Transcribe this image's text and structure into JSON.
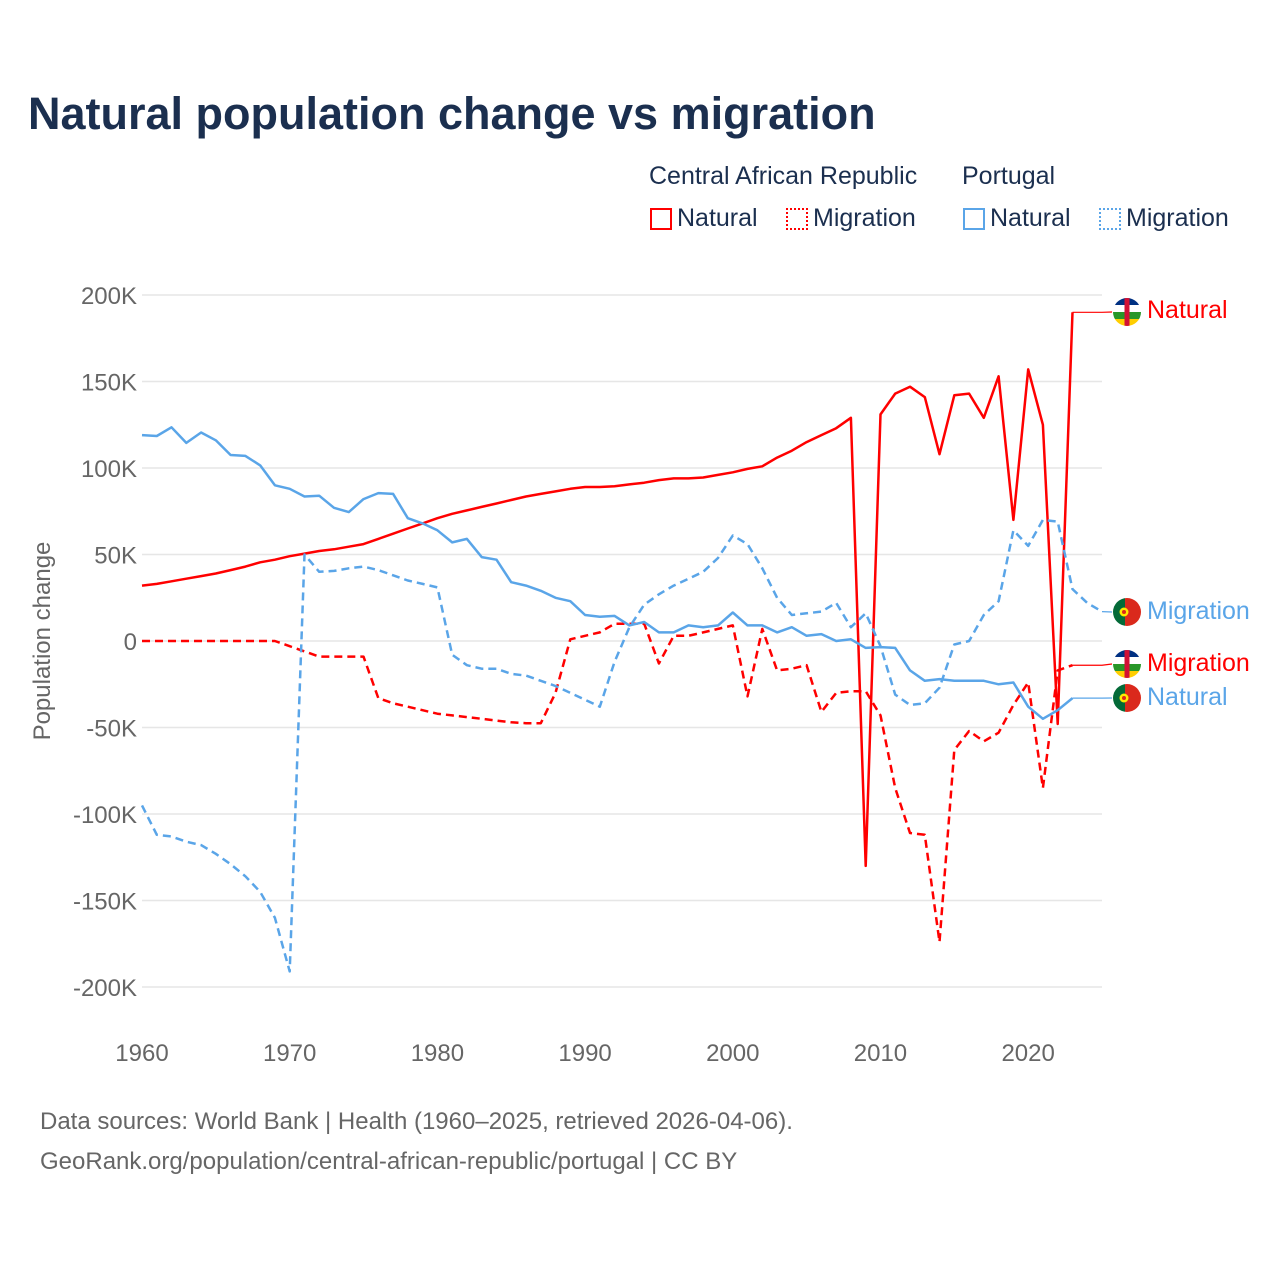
{
  "colors": {
    "car": "#ff0000",
    "portugal": "#5aa5e8",
    "grid": "#e6e6e6",
    "axis_text": "#666666",
    "title": "#1b2f4f"
  },
  "legend": {
    "groups": [
      {
        "name": "Central African Republic",
        "items": [
          "Natural",
          "Migration"
        ]
      },
      {
        "name": "Portugal",
        "items": [
          "Natural",
          "Migration"
        ]
      }
    ]
  },
  "end_labels": {
    "car_natural": "Natural",
    "portugal_migration": "Migration",
    "car_migration": "Migration",
    "portugal_natural": "Natural"
  },
  "footer": {
    "line1": "Data sources: World Bank | Health (1960–2025, retrieved 2026-04-06).",
    "line2": "GeoRank.org/population/central-african-republic/portugal | CC BY"
  },
  "chart_data": {
    "type": "line",
    "title": "Natural population change vs migration",
    "xlabel": "",
    "ylabel": "Population change",
    "xlim": [
      1960,
      2025
    ],
    "ylim": [
      -200000,
      200000
    ],
    "x_ticks": [
      1960,
      1970,
      1980,
      1990,
      2000,
      2010,
      2020
    ],
    "y_ticks": [
      200000,
      150000,
      100000,
      50000,
      0,
      -50000,
      -100000,
      -150000,
      -200000
    ],
    "y_tick_labels": [
      "200K",
      "150K",
      "100K",
      "50K",
      "0",
      "-50K",
      "-100K",
      "-150K",
      "-200K"
    ],
    "grid": true,
    "legend_placement": "top-right",
    "series": [
      {
        "name": "Central African Republic Natural",
        "country": "Central African Republic",
        "kind": "Natural",
        "dash": "solid",
        "start": 1960,
        "values_k": [
          32,
          33,
          34.5,
          36,
          37.5,
          39,
          41,
          43,
          45.5,
          47,
          49,
          50.5,
          52,
          53,
          54.5,
          56,
          59,
          62,
          65,
          68,
          71,
          73.5,
          75.5,
          77.5,
          79.5,
          81.5,
          83.5,
          85,
          86.5,
          88,
          89,
          89,
          89.5,
          90.5,
          91.5,
          93,
          94,
          94,
          94.5,
          96,
          97.5,
          99.5,
          101,
          106,
          110,
          115,
          119,
          123,
          129,
          -130,
          131,
          143,
          147,
          141,
          108,
          142,
          143,
          129,
          153,
          70,
          157,
          125,
          -48,
          190
        ]
      },
      {
        "name": "Central African Republic Migration",
        "country": "Central African Republic",
        "kind": "Migration",
        "dash": "dashed",
        "start": 1960,
        "values_k": [
          0,
          0,
          0,
          0,
          0,
          0,
          0,
          0,
          0,
          0,
          -3,
          -6,
          -9,
          -9,
          -9,
          -9,
          -33,
          -36,
          -38,
          -40,
          -42,
          -43,
          -44,
          -45,
          -46,
          -47,
          -47.5,
          -47.5,
          -30,
          1,
          3,
          5,
          10,
          10,
          10,
          -13,
          3,
          3,
          5,
          7,
          9,
          -32,
          7,
          -17,
          -16,
          -14,
          -41,
          -30,
          -29,
          -29,
          -43,
          -85,
          -111,
          -112,
          -174,
          -63,
          -52,
          -58,
          -53,
          -37,
          -24,
          -85,
          -17,
          -14
        ]
      },
      {
        "name": "Portugal Natural",
        "country": "Portugal",
        "kind": "Natural",
        "dash": "solid",
        "start": 1960,
        "values_k": [
          119,
          118.5,
          123.5,
          114.5,
          120.5,
          116,
          107.5,
          107,
          101.5,
          90,
          88,
          83.5,
          84,
          77,
          74.5,
          82,
          85.5,
          85,
          71,
          68,
          64,
          57,
          59,
          48.5,
          47,
          34,
          32,
          29,
          25,
          23,
          15,
          14,
          14.5,
          9,
          11,
          5,
          5,
          9,
          8,
          9,
          16.5,
          9,
          9,
          5,
          8,
          3,
          4,
          0,
          1,
          -4,
          -3.5,
          -4,
          -17,
          -23,
          -22,
          -23,
          -23,
          -23,
          -25,
          -24,
          -38,
          -45,
          -40,
          -33
        ]
      },
      {
        "name": "Portugal Migration",
        "country": "Portugal",
        "kind": "Migration",
        "dash": "dashed",
        "start": 1960,
        "values_k": [
          -95,
          -112,
          -113,
          -116,
          -118,
          -123,
          -129,
          -136,
          -145,
          -160,
          -191,
          50,
          40,
          40.5,
          42,
          43,
          41,
          38,
          35,
          33,
          31,
          -8,
          -14,
          -16,
          -16,
          -19,
          -20,
          -23,
          -26,
          -30,
          -34,
          -38,
          -12,
          8,
          21,
          27,
          32,
          36,
          40,
          48,
          61,
          56,
          42,
          25,
          15,
          16,
          17,
          22,
          8,
          16,
          -3,
          -31,
          -37,
          -36,
          -27,
          -2,
          0,
          15,
          23,
          64,
          55,
          70,
          69,
          30,
          22,
          17
        ]
      }
    ]
  }
}
